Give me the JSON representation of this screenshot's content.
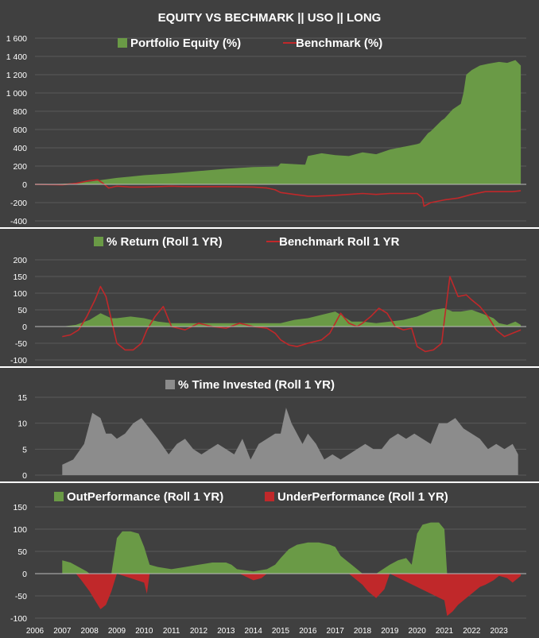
{
  "title": "EQUITY VS BECHMARK || USO || LONG",
  "colors": {
    "background": "#404040",
    "grid": "#5a5a5a",
    "green": "#6a9a46",
    "red": "#c0282a",
    "gray": "#8c8c8c",
    "text": "#ffffff"
  },
  "x_axis": {
    "labels": [
      "2006",
      "2007",
      "2008",
      "2009",
      "2010",
      "2011",
      "2012",
      "2013",
      "2014",
      "2015",
      "2016",
      "2017",
      "2018",
      "2019",
      "2020",
      "2021",
      "2022",
      "2023"
    ]
  },
  "chart_data": [
    {
      "type": "area",
      "legend": "top",
      "grid": true,
      "ylim": [
        -400,
        1600
      ],
      "yticks": [
        "-400",
        "-200",
        "0",
        "200",
        "400",
        "600",
        "800",
        "1 000",
        "1 200",
        "1 400",
        "1 600"
      ],
      "ytick_values": [
        -400,
        -200,
        0,
        200,
        400,
        600,
        800,
        1000,
        1200,
        1400,
        1600
      ],
      "series": [
        {
          "name": "Portfolio Equity (%)",
          "kind": "area",
          "color": "#6a9a46",
          "x": [
            2006.0,
            2007.0,
            2007.5,
            2008.0,
            2008.5,
            2009.0,
            2009.5,
            2010.0,
            2011.0,
            2012.0,
            2013.0,
            2014.0,
            2014.9,
            2015.0,
            2015.9,
            2016.0,
            2016.5,
            2017.0,
            2017.5,
            2018.0,
            2018.5,
            2019.0,
            2019.5,
            2020.0,
            2020.1,
            2020.4,
            2020.5,
            2020.7,
            2020.9,
            2021.0,
            2021.3,
            2021.6,
            2021.7,
            2021.8,
            2022.0,
            2022.3,
            2022.6,
            2023.0,
            2023.3,
            2023.6,
            2023.8
          ],
          "y": [
            0,
            5,
            15,
            30,
            50,
            70,
            85,
            100,
            120,
            145,
            170,
            190,
            195,
            230,
            215,
            310,
            340,
            320,
            310,
            350,
            330,
            380,
            410,
            440,
            450,
            560,
            580,
            640,
            700,
            720,
            820,
            880,
            1000,
            1200,
            1250,
            1300,
            1320,
            1340,
            1330,
            1360,
            1300
          ]
        },
        {
          "name": "Benchmark (%)",
          "kind": "line",
          "color": "#c0282a",
          "x": [
            2006.0,
            2007.0,
            2007.5,
            2008.0,
            2008.3,
            2008.5,
            2008.7,
            2009.0,
            2009.5,
            2010.0,
            2010.5,
            2011.0,
            2011.5,
            2012.0,
            2013.0,
            2014.0,
            2014.5,
            2014.8,
            2015.0,
            2015.5,
            2016.0,
            2016.3,
            2017.0,
            2017.5,
            2018.0,
            2018.5,
            2019.0,
            2019.5,
            2020.0,
            2020.2,
            2020.25,
            2020.5,
            2021.0,
            2021.5,
            2022.0,
            2022.5,
            2023.0,
            2023.5,
            2023.8
          ],
          "y": [
            0,
            -5,
            10,
            40,
            50,
            10,
            -40,
            -20,
            -30,
            -30,
            -25,
            -20,
            -25,
            -25,
            -25,
            -30,
            -40,
            -60,
            -90,
            -110,
            -130,
            -130,
            -120,
            -110,
            -100,
            -110,
            -100,
            -100,
            -100,
            -150,
            -240,
            -200,
            -170,
            -150,
            -110,
            -80,
            -80,
            -80,
            -70
          ]
        }
      ]
    },
    {
      "type": "area",
      "legend": "top",
      "grid": true,
      "ylim": [
        -100,
        200
      ],
      "yticks": [
        "-100",
        "-50",
        "0",
        "50",
        "100",
        "150",
        "200"
      ],
      "ytick_values": [
        -100,
        -50,
        0,
        50,
        100,
        150,
        200
      ],
      "series": [
        {
          "name": "% Return (Roll 1  YR)",
          "kind": "area",
          "color": "#6a9a46",
          "x": [
            2007.0,
            2007.5,
            2008.0,
            2008.4,
            2008.8,
            2009.0,
            2009.5,
            2010.0,
            2010.5,
            2011.0,
            2012.0,
            2013.0,
            2014.0,
            2015.0,
            2015.5,
            2016.0,
            2016.5,
            2017.0,
            2017.3,
            2017.6,
            2018.0,
            2018.5,
            2019.0,
            2019.5,
            2020.0,
            2020.3,
            2020.6,
            2021.0,
            2021.3,
            2021.6,
            2022.0,
            2022.5,
            2022.8,
            2023.0,
            2023.3,
            2023.6,
            2023.8
          ],
          "y": [
            0,
            5,
            20,
            40,
            25,
            25,
            30,
            25,
            15,
            10,
            10,
            10,
            10,
            10,
            20,
            25,
            35,
            45,
            30,
            15,
            15,
            10,
            15,
            20,
            30,
            40,
            50,
            55,
            45,
            45,
            50,
            35,
            25,
            10,
            5,
            15,
            5
          ]
        },
        {
          "name": "Benchmark Roll 1 YR",
          "kind": "line",
          "color": "#c0282a",
          "x": [
            2007.0,
            2007.3,
            2007.6,
            2007.9,
            2008.2,
            2008.4,
            2008.6,
            2008.8,
            2009.0,
            2009.3,
            2009.6,
            2009.9,
            2010.1,
            2010.4,
            2010.7,
            2011.0,
            2011.5,
            2012.0,
            2012.5,
            2013.0,
            2013.5,
            2014.0,
            2014.5,
            2014.8,
            2015.0,
            2015.3,
            2015.6,
            2016.0,
            2016.5,
            2016.8,
            2017.0,
            2017.2,
            2017.5,
            2017.8,
            2018.0,
            2018.3,
            2018.6,
            2018.9,
            2019.2,
            2019.5,
            2019.8,
            2020.0,
            2020.3,
            2020.6,
            2020.9,
            2021.0,
            2021.2,
            2021.5,
            2021.8,
            2022.0,
            2022.3,
            2022.6,
            2022.9,
            2023.2,
            2023.5,
            2023.8
          ],
          "y": [
            -30,
            -25,
            -10,
            30,
            80,
            120,
            90,
            20,
            -50,
            -70,
            -70,
            -50,
            -10,
            30,
            60,
            0,
            -10,
            10,
            0,
            -5,
            10,
            0,
            -5,
            -20,
            -40,
            -55,
            -60,
            -50,
            -40,
            -20,
            10,
            40,
            10,
            0,
            10,
            30,
            55,
            40,
            0,
            -10,
            -5,
            -60,
            -75,
            -70,
            -50,
            20,
            150,
            90,
            95,
            80,
            60,
            30,
            -10,
            -30,
            -20,
            -10
          ]
        }
      ]
    },
    {
      "type": "area",
      "legend": "top",
      "grid": true,
      "ylim": [
        0,
        15
      ],
      "yticks": [
        "0",
        "5",
        "10",
        "15"
      ],
      "ytick_values": [
        0,
        5,
        10,
        15
      ],
      "series": [
        {
          "name": "% Time Invested (Roll 1 YR)",
          "kind": "area",
          "color": "#8c8c8c",
          "x": [
            2007.0,
            2007.4,
            2007.8,
            2008.1,
            2008.4,
            2008.6,
            2008.8,
            2009.0,
            2009.3,
            2009.6,
            2009.9,
            2010.2,
            2010.5,
            2010.9,
            2011.2,
            2011.5,
            2011.8,
            2012.1,
            2012.4,
            2012.7,
            2013.0,
            2013.3,
            2013.6,
            2013.9,
            2014.2,
            2014.5,
            2014.8,
            2015.0,
            2015.2,
            2015.4,
            2015.6,
            2015.8,
            2016.0,
            2016.3,
            2016.6,
            2016.9,
            2017.2,
            2017.5,
            2017.8,
            2018.1,
            2018.4,
            2018.7,
            2019.0,
            2019.3,
            2019.6,
            2019.9,
            2020.2,
            2020.5,
            2020.8,
            2021.1,
            2021.4,
            2021.7,
            2022.0,
            2022.3,
            2022.6,
            2022.9,
            2023.2,
            2023.5,
            2023.7
          ],
          "y": [
            2,
            3,
            6,
            12,
            11,
            8,
            8,
            7,
            8,
            10,
            11,
            9,
            7,
            4,
            6,
            7,
            5,
            4,
            5,
            6,
            5,
            4,
            7,
            3,
            6,
            7,
            8,
            8,
            13,
            10,
            8,
            6,
            8,
            6,
            3,
            4,
            3,
            4,
            5,
            6,
            5,
            5,
            7,
            8,
            7,
            8,
            7,
            6,
            10,
            10,
            11,
            9,
            8,
            7,
            5,
            6,
            5,
            6,
            4
          ]
        }
      ]
    },
    {
      "type": "bar",
      "legend": "top",
      "grid": true,
      "ylim": [
        -100,
        150
      ],
      "yticks": [
        "-100",
        "-50",
        "0",
        "50",
        "100",
        "150"
      ],
      "ytick_values": [
        -100,
        -50,
        0,
        50,
        100,
        150
      ],
      "series": [
        {
          "name": "OutPerformance (Roll 1 YR)",
          "color": "#6a9a46",
          "x": [
            2007.0,
            2007.3,
            2007.6,
            2007.9,
            2008.0,
            2008.8,
            2009.0,
            2009.2,
            2009.5,
            2009.8,
            2010.0,
            2010.2,
            2010.5,
            2011.0,
            2011.5,
            2012.0,
            2012.5,
            2013.0,
            2013.2,
            2013.4,
            2014.0,
            2014.5,
            2014.8,
            2015.0,
            2015.3,
            2015.6,
            2016.0,
            2016.4,
            2016.8,
            2017.0,
            2017.2,
            2017.4,
            2017.6,
            2018.0,
            2018.3,
            2018.5,
            2019.0,
            2019.3,
            2019.6,
            2019.8,
            2020.0,
            2020.2,
            2020.5,
            2020.8,
            2021.0,
            2021.1
          ],
          "y": [
            30,
            25,
            15,
            5,
            0,
            0,
            80,
            95,
            95,
            90,
            60,
            20,
            15,
            10,
            15,
            20,
            25,
            25,
            20,
            10,
            5,
            10,
            20,
            35,
            55,
            65,
            70,
            70,
            65,
            60,
            40,
            30,
            20,
            0,
            0,
            0,
            20,
            30,
            35,
            20,
            90,
            110,
            115,
            115,
            100,
            0
          ]
        },
        {
          "name": "UnderPerformance (Roll 1 YR)",
          "color": "#c0282a",
          "x": [
            2007.5,
            2007.7,
            2008.0,
            2008.2,
            2008.4,
            2008.6,
            2008.8,
            2009.0,
            2010.0,
            2010.1,
            2010.2,
            2013.5,
            2014.0,
            2014.3,
            2014.5,
            2017.5,
            2018.0,
            2018.2,
            2018.5,
            2018.8,
            2019.0,
            2021.0,
            2021.1,
            2021.3,
            2021.5,
            2021.8,
            2022.0,
            2022.3,
            2022.5,
            2022.8,
            2023.0,
            2023.3,
            2023.5,
            2023.8
          ],
          "y": [
            0,
            -15,
            -40,
            -60,
            -80,
            -70,
            -40,
            0,
            -20,
            -45,
            0,
            0,
            -15,
            -10,
            0,
            0,
            -25,
            -40,
            -55,
            -35,
            0,
            -60,
            -95,
            -85,
            -70,
            -55,
            -45,
            -30,
            -25,
            -15,
            -5,
            -10,
            -20,
            -5
          ]
        }
      ]
    }
  ]
}
